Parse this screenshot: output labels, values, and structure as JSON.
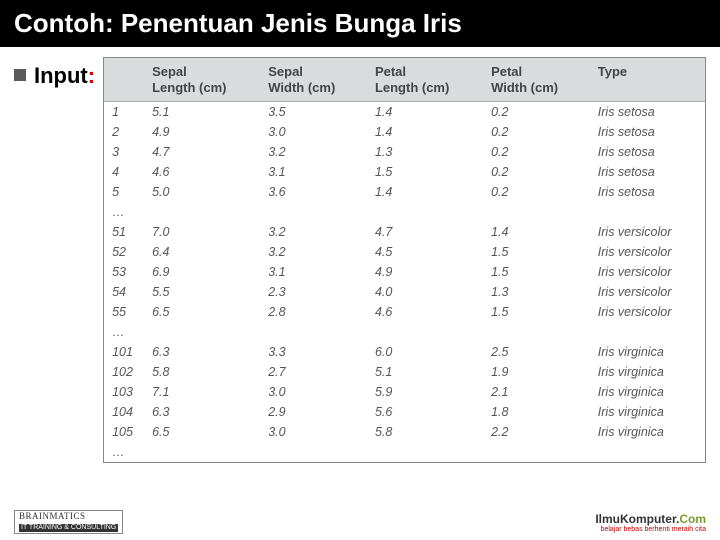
{
  "title": "Contoh: Penentuan Jenis Bunga Iris",
  "input_label": "Input",
  "input_colon": ":",
  "table": {
    "columns": [
      "",
      "Sepal\nLength (cm)",
      "Sepal\nWidth (cm)",
      "Petal\nLength (cm)",
      "Petal\nWidth (cm)",
      "Type"
    ],
    "rows": [
      [
        "1",
        "5.1",
        "3.5",
        "1.4",
        "0.2",
        "Iris setosa"
      ],
      [
        "2",
        "4.9",
        "3.0",
        "1.4",
        "0.2",
        "Iris setosa"
      ],
      [
        "3",
        "4.7",
        "3.2",
        "1.3",
        "0.2",
        "Iris setosa"
      ],
      [
        "4",
        "4.6",
        "3.1",
        "1.5",
        "0.2",
        "Iris setosa"
      ],
      [
        "5",
        "5.0",
        "3.6",
        "1.4",
        "0.2",
        "Iris setosa"
      ],
      [
        "…",
        "",
        "",
        "",
        "",
        ""
      ],
      [
        "51",
        "7.0",
        "3.2",
        "4.7",
        "1.4",
        "Iris versicolor"
      ],
      [
        "52",
        "6.4",
        "3.2",
        "4.5",
        "1.5",
        "Iris versicolor"
      ],
      [
        "53",
        "6.9",
        "3.1",
        "4.9",
        "1.5",
        "Iris versicolor"
      ],
      [
        "54",
        "5.5",
        "2.3",
        "4.0",
        "1.3",
        "Iris versicolor"
      ],
      [
        "55",
        "6.5",
        "2.8",
        "4.6",
        "1.5",
        "Iris versicolor"
      ],
      [
        "…",
        "",
        "",
        "",
        "",
        ""
      ],
      [
        "101",
        "6.3",
        "3.3",
        "6.0",
        "2.5",
        "Iris virginica"
      ],
      [
        "102",
        "5.8",
        "2.7",
        "5.1",
        "1.9",
        "Iris virginica"
      ],
      [
        "103",
        "7.1",
        "3.0",
        "5.9",
        "2.1",
        "Iris virginica"
      ],
      [
        "104",
        "6.3",
        "2.9",
        "5.6",
        "1.8",
        "Iris virginica"
      ],
      [
        "105",
        "6.5",
        "3.0",
        "5.8",
        "2.2",
        "Iris virginica"
      ],
      [
        "…",
        "",
        "",
        "",
        "",
        ""
      ]
    ],
    "header_bg": "#d9dcdd",
    "row_text_color": "#555555",
    "header_text_color": "#404548",
    "font_size_header": 13,
    "font_size_cell": 12.5
  },
  "footer": {
    "left_brand": "BRAINMATICS",
    "left_sub": "IT TRAINING & CONSULTING",
    "right_brand": "IlmuKomputer.",
    "right_brand_suffix": "Com",
    "right_tag": "belajar bebas berhenti meraih cita"
  }
}
